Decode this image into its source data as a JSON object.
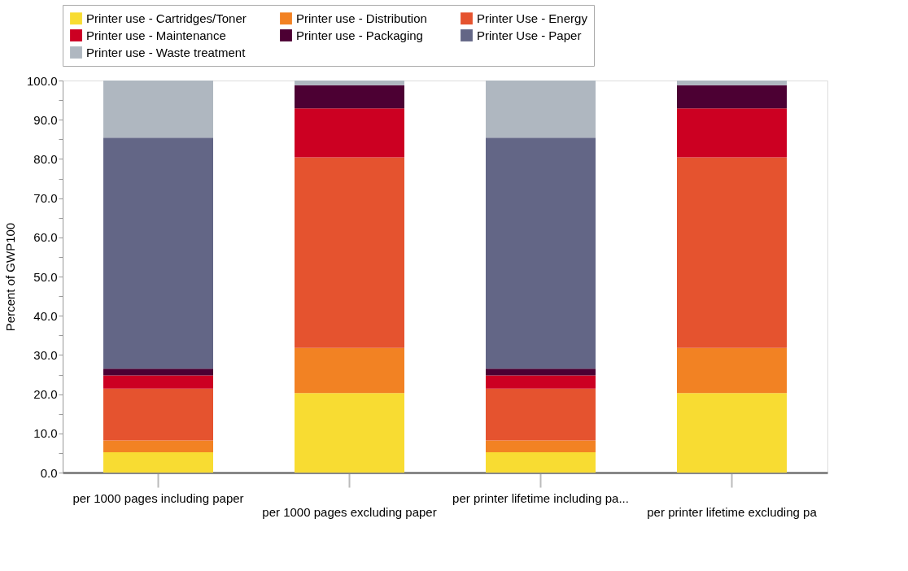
{
  "chart_data": {
    "type": "bar",
    "stacked": true,
    "ylabel": "Percent of GWP100",
    "categories": [
      "per 1000 pages including paper",
      "per 1000 pages excluding paper",
      "per printer lifetime including pa...",
      "per printer lifetime excluding pa"
    ],
    "series": [
      {
        "name": "Printer use - Cartridges/Toner",
        "color": "#f8dc32",
        "values": [
          5.2,
          20.3,
          5.2,
          20.3
        ]
      },
      {
        "name": "Printer use - Distribution",
        "color": "#f28223",
        "values": [
          3.0,
          11.5,
          3.0,
          11.5
        ]
      },
      {
        "name": "Printer Use - Energy",
        "color": "#e5532f",
        "values": [
          13.2,
          48.6,
          13.2,
          48.6
        ]
      },
      {
        "name": "Printer use - Maintenance",
        "color": "#cc0022",
        "values": [
          3.4,
          12.5,
          3.4,
          12.5
        ]
      },
      {
        "name": "Printer use - Packaging",
        "color": "#4c0033",
        "values": [
          1.7,
          5.9,
          1.7,
          5.9
        ]
      },
      {
        "name": "Printer Use - Paper",
        "color": "#636686",
        "values": [
          58.9,
          0,
          58.9,
          0
        ]
      },
      {
        "name": "Printer use - Waste treatment",
        "color": "#afb7c0",
        "values": [
          14.6,
          1.2,
          14.6,
          1.2
        ]
      }
    ],
    "ylim": [
      0,
      100
    ],
    "yticks": [
      {
        "value": 0,
        "label": "0.0"
      },
      {
        "value": 5,
        "label": null
      },
      {
        "value": 10,
        "label": "10.0"
      },
      {
        "value": 15,
        "label": null
      },
      {
        "value": 20,
        "label": "20.0"
      },
      {
        "value": 25,
        "label": null
      },
      {
        "value": 30,
        "label": "30.0"
      },
      {
        "value": 35,
        "label": null
      },
      {
        "value": 40,
        "label": "40.0"
      },
      {
        "value": 45,
        "label": null
      },
      {
        "value": 50,
        "label": "50.0"
      },
      {
        "value": 55,
        "label": null
      },
      {
        "value": 60,
        "label": "60.0"
      },
      {
        "value": 65,
        "label": null
      },
      {
        "value": 70,
        "label": "70.0"
      },
      {
        "value": 75,
        "label": null
      },
      {
        "value": 80,
        "label": "80.0"
      },
      {
        "value": 85,
        "label": null
      },
      {
        "value": 90,
        "label": "90.0"
      },
      {
        "value": 95,
        "label": null
      },
      {
        "value": 100,
        "label": "100.0"
      }
    ],
    "grid": false,
    "legend": "top"
  }
}
